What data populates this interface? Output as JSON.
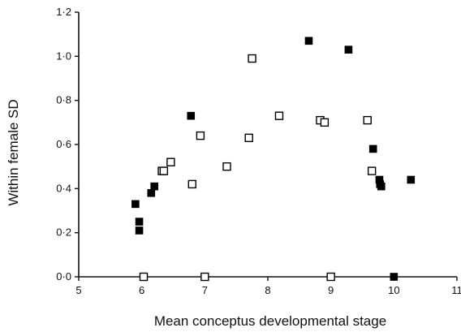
{
  "chart_data": {
    "type": "scatter",
    "title": "",
    "xlabel": "Mean conceptus developmental stage",
    "ylabel": "Within female SD",
    "xlim": [
      5,
      11
    ],
    "ylim": [
      0,
      1.2
    ],
    "x_ticks": [
      5,
      6,
      7,
      8,
      9,
      10,
      11
    ],
    "x_tick_labels": [
      "5",
      "6",
      "7",
      "8",
      "9",
      "10",
      "11"
    ],
    "y_ticks": [
      0,
      0.2,
      0.4,
      0.6,
      0.8,
      1.0,
      1.2
    ],
    "y_tick_labels": [
      "0·0",
      "0·2",
      "0·4",
      "0·6",
      "0·8",
      "1·0",
      "1·2"
    ],
    "grid": false,
    "legend": "none",
    "series": [
      {
        "marker": "filled-square",
        "color": "#000000",
        "points": [
          [
            5.9,
            0.33
          ],
          [
            5.96,
            0.25
          ],
          [
            5.96,
            0.21
          ],
          [
            6.15,
            0.38
          ],
          [
            6.2,
            0.41
          ],
          [
            6.78,
            0.73
          ],
          [
            8.65,
            1.07
          ],
          [
            9.28,
            1.03
          ],
          [
            9.67,
            0.58
          ],
          [
            9.77,
            0.44
          ],
          [
            9.78,
            0.42
          ],
          [
            9.8,
            0.41
          ],
          [
            10.27,
            0.44
          ],
          [
            10.0,
            0.0
          ]
        ]
      },
      {
        "marker": "open-square",
        "color": "#000000",
        "points": [
          [
            6.03,
            0.0
          ],
          [
            6.32,
            0.48
          ],
          [
            6.35,
            0.48
          ],
          [
            6.46,
            0.52
          ],
          [
            6.8,
            0.42
          ],
          [
            6.93,
            0.64
          ],
          [
            7.0,
            0.0
          ],
          [
            7.35,
            0.5
          ],
          [
            7.7,
            0.63
          ],
          [
            7.75,
            0.99
          ],
          [
            8.18,
            0.73
          ],
          [
            8.83,
            0.71
          ],
          [
            8.9,
            0.7
          ],
          [
            9.0,
            0.0
          ],
          [
            9.58,
            0.71
          ],
          [
            9.65,
            0.48
          ]
        ]
      }
    ]
  }
}
